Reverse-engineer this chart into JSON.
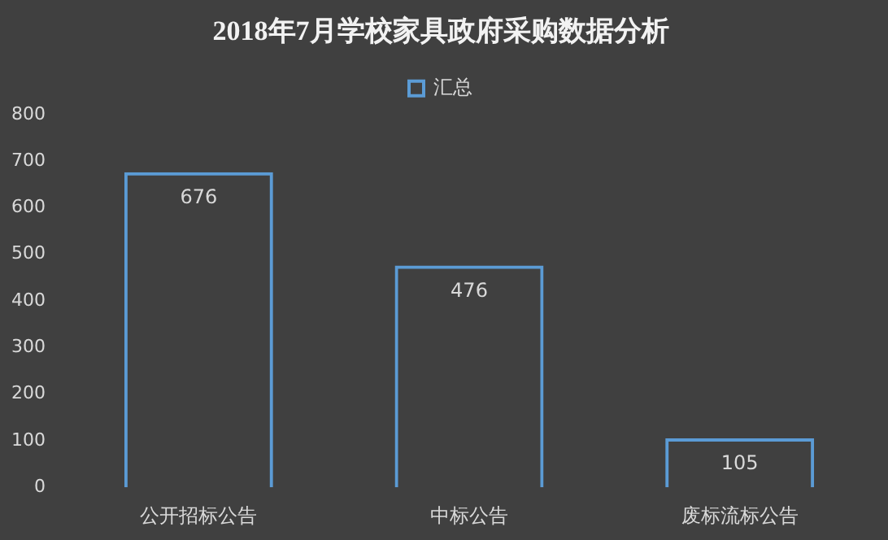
{
  "chart_data": {
    "type": "bar",
    "title": "2018年7月学校家具政府采购数据分析",
    "categories": [
      "公开招标公告",
      "中标公告",
      "废标流标公告"
    ],
    "series": [
      {
        "name": "汇总",
        "color": "#5b9bd5",
        "values": [
          676,
          476,
          105
        ]
      }
    ],
    "ylim": [
      0,
      800
    ],
    "yticks": [
      0,
      100,
      200,
      300,
      400,
      500,
      600,
      700,
      800
    ],
    "grid": false,
    "legend": "top",
    "data_labels": true
  }
}
